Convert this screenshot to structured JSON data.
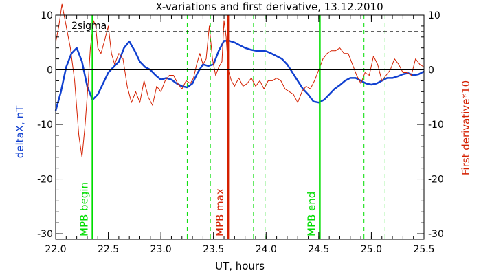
{
  "chart_data": {
    "type": "line",
    "title": "X-variations and first derivative, 13.12.2010",
    "xlabel": "UT, hours",
    "ylabel_left": "deltaX, nT",
    "ylabel_right": "First derivative*10",
    "xlim": [
      22.0,
      25.5
    ],
    "ylim": [
      -31,
      10
    ],
    "x_ticks": [
      "22.0",
      "22.5",
      "23.0",
      "23.5",
      "24.0",
      "24.5",
      "25.0",
      "25.5"
    ],
    "y_ticks_left": [
      "10",
      "0",
      "-10",
      "-20",
      "-30"
    ],
    "y_ticks_right": [
      "10",
      "0",
      "-10",
      "-20",
      "-30"
    ],
    "sigma_line": {
      "label": "2sigma",
      "y": 7.0
    },
    "zero_line": 0,
    "markers": [
      {
        "label": "MPB begin",
        "x": 22.35,
        "color": "#00dd00"
      },
      {
        "label": "MPB max",
        "x": 23.64,
        "color": "#d42000"
      },
      {
        "label": "MPB end",
        "x": 24.51,
        "color": "#00dd00"
      }
    ],
    "dashed_markers": [
      23.25,
      23.47,
      23.88,
      23.99,
      24.93,
      25.13
    ],
    "series": [
      {
        "color": "#1040d0",
        "x": [
          22.0,
          22.05,
          22.1,
          22.15,
          22.2,
          22.25,
          22.3,
          22.35,
          22.4,
          22.45,
          22.5,
          22.55,
          22.6,
          22.65,
          22.7,
          22.75,
          22.8,
          22.85,
          22.9,
          22.95,
          23.0,
          23.05,
          23.1,
          23.15,
          23.2,
          23.25,
          23.3,
          23.35,
          23.4,
          23.45,
          23.5,
          23.55,
          23.6,
          23.65,
          23.7,
          23.75,
          23.8,
          23.85,
          23.9,
          23.95,
          24.0,
          24.05,
          24.1,
          24.15,
          24.2,
          24.25,
          24.3,
          24.35,
          24.4,
          24.45,
          24.5,
          24.55,
          24.6,
          24.65,
          24.7,
          24.75,
          24.8,
          24.85,
          24.9,
          24.95,
          25.0,
          25.05,
          25.1,
          25.15,
          25.2,
          25.25,
          25.3,
          25.35,
          25.4,
          25.45,
          25.5
        ],
        "values": [
          -7.5,
          -4.0,
          0.5,
          3.0,
          4.0,
          1.5,
          -3.0,
          -5.5,
          -4.5,
          -2.5,
          -0.5,
          0.5,
          1.5,
          4.0,
          5.2,
          3.5,
          1.5,
          0.5,
          0.0,
          -1.0,
          -1.8,
          -1.5,
          -1.8,
          -2.5,
          -3.0,
          -3.2,
          -2.5,
          -0.5,
          1.0,
          0.7,
          1.0,
          3.5,
          5.3,
          5.3,
          5.0,
          4.5,
          4.0,
          3.7,
          3.5,
          3.5,
          3.4,
          3.0,
          2.5,
          2.0,
          1.0,
          -0.5,
          -2.0,
          -3.5,
          -4.5,
          -5.8,
          -6.0,
          -5.5,
          -4.5,
          -3.5,
          -2.8,
          -2.0,
          -1.5,
          -1.5,
          -2.0,
          -2.5,
          -2.7,
          -2.5,
          -2.0,
          -1.5,
          -1.5,
          -1.2,
          -0.8,
          -0.6,
          -1.0,
          -0.8,
          -0.3
        ]
      },
      {
        "color": "#d42000",
        "x": [
          22.0,
          22.03,
          22.06,
          22.1,
          22.14,
          22.18,
          22.22,
          22.25,
          22.28,
          22.31,
          22.33,
          22.36,
          22.38,
          22.4,
          22.43,
          22.46,
          22.5,
          22.53,
          22.56,
          22.6,
          22.64,
          22.68,
          22.72,
          22.76,
          22.8,
          22.84,
          22.88,
          22.92,
          22.96,
          23.0,
          23.04,
          23.08,
          23.12,
          23.16,
          23.2,
          23.24,
          23.28,
          23.31,
          23.34,
          23.37,
          23.4,
          23.43,
          23.46,
          23.49,
          23.52,
          23.55,
          23.58,
          23.6,
          23.62,
          23.64,
          23.67,
          23.7,
          23.74,
          23.78,
          23.82,
          23.86,
          23.9,
          23.94,
          23.98,
          24.02,
          24.06,
          24.1,
          24.14,
          24.18,
          24.22,
          24.26,
          24.3,
          24.34,
          24.38,
          24.42,
          24.46,
          24.5,
          24.54,
          24.58,
          24.62,
          24.66,
          24.7,
          24.74,
          24.78,
          24.82,
          24.86,
          24.9,
          24.94,
          24.98,
          25.02,
          25.06,
          25.1,
          25.14,
          25.18,
          25.22,
          25.26,
          25.3,
          25.34,
          25.38,
          25.42,
          25.46,
          25.5
        ],
        "values": [
          5.0,
          8.0,
          12.0,
          8.0,
          4.0,
          -2.0,
          -12.0,
          -16.0,
          -10.0,
          -2.0,
          4.0,
          9.0,
          8.0,
          4.0,
          3.0,
          5.0,
          8.0,
          3.0,
          1.0,
          3.0,
          2.0,
          -3.0,
          -6.0,
          -4.0,
          -6.0,
          -2.0,
          -5.0,
          -6.5,
          -3.0,
          -4.0,
          -2.0,
          -1.0,
          -1.0,
          -2.5,
          -3.5,
          -2.0,
          -2.5,
          -1.5,
          1.0,
          3.0,
          1.0,
          2.0,
          8.0,
          2.0,
          -1.0,
          0.5,
          1.5,
          9.0,
          6.0,
          0.0,
          -2.0,
          -3.0,
          -1.5,
          -3.0,
          -2.5,
          -1.5,
          -3.0,
          -2.0,
          -3.5,
          -2.0,
          -2.0,
          -1.5,
          -2.0,
          -3.5,
          -4.0,
          -4.5,
          -6.0,
          -4.0,
          -3.0,
          -3.5,
          -2.0,
          0.0,
          2.0,
          3.0,
          3.5,
          3.5,
          4.0,
          3.0,
          3.0,
          1.0,
          -1.0,
          -2.5,
          -0.5,
          -1.0,
          2.5,
          1.0,
          -2.0,
          -1.0,
          0.0,
          2.0,
          1.0,
          -0.5,
          -0.5,
          -1.0,
          2.0,
          1.0,
          0.5
        ]
      }
    ]
  }
}
